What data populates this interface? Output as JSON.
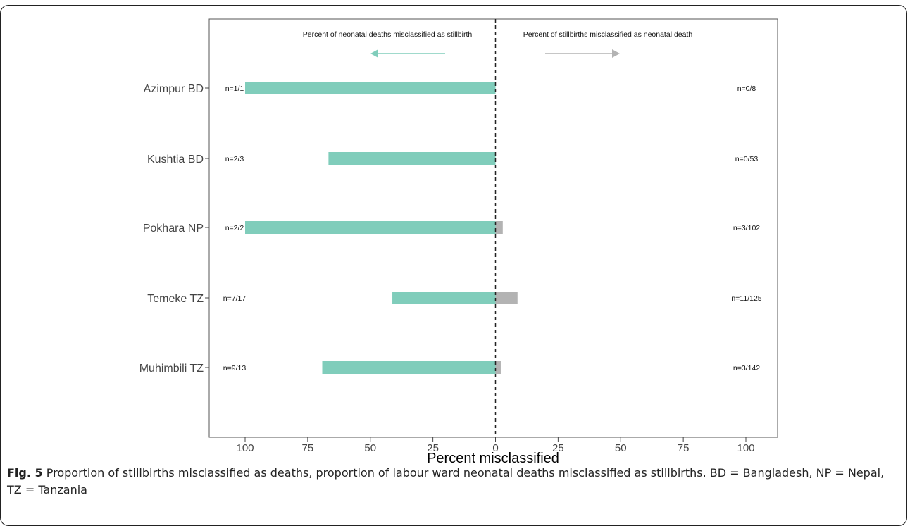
{
  "chart_data": {
    "type": "bar",
    "xlabel": "Percent misclassified",
    "ylabel": "",
    "xlim_left": [
      100,
      0
    ],
    "xlim_right": [
      0,
      100
    ],
    "xticks": [
      "100",
      "75",
      "50",
      "25",
      "0",
      "25",
      "50",
      "75",
      "100"
    ],
    "annotations": {
      "left": "Percent of neonatal deaths misclassified as stillbirth",
      "right": "Percent of stillbirths misclassified as neonatal death"
    },
    "colors": {
      "left": "#80cdbb",
      "right": "#b3b3b3",
      "arrow_left": "#80cdbb",
      "arrow_right": "#b3b3b3"
    },
    "categories": [
      "Azimpur BD",
      "Kushtia BD",
      "Pokhara NP",
      "Temeke TZ",
      "Muhimbili TZ"
    ],
    "series": [
      {
        "values": [
          100,
          66.7,
          100,
          41.2,
          69.2
        ],
        "labels": [
          "n=1/1",
          "n=2/3",
          "n=2/2",
          "n=7/17",
          "n=9/13"
        ]
      },
      {
        "values": [
          0,
          0,
          2.9,
          8.8,
          2.1
        ],
        "labels": [
          "n=0/8",
          "n=0/53",
          "n=3/102",
          "n=11/125",
          "n=3/142"
        ]
      }
    ]
  },
  "caption": {
    "label": "Fig. 5",
    "text": " Proportion of stillbirths misclassified as deaths, proportion of labour ward neonatal deaths misclassified as stillbirths. BD = Bangladesh, NP = Nepal, TZ = Tanzania"
  }
}
